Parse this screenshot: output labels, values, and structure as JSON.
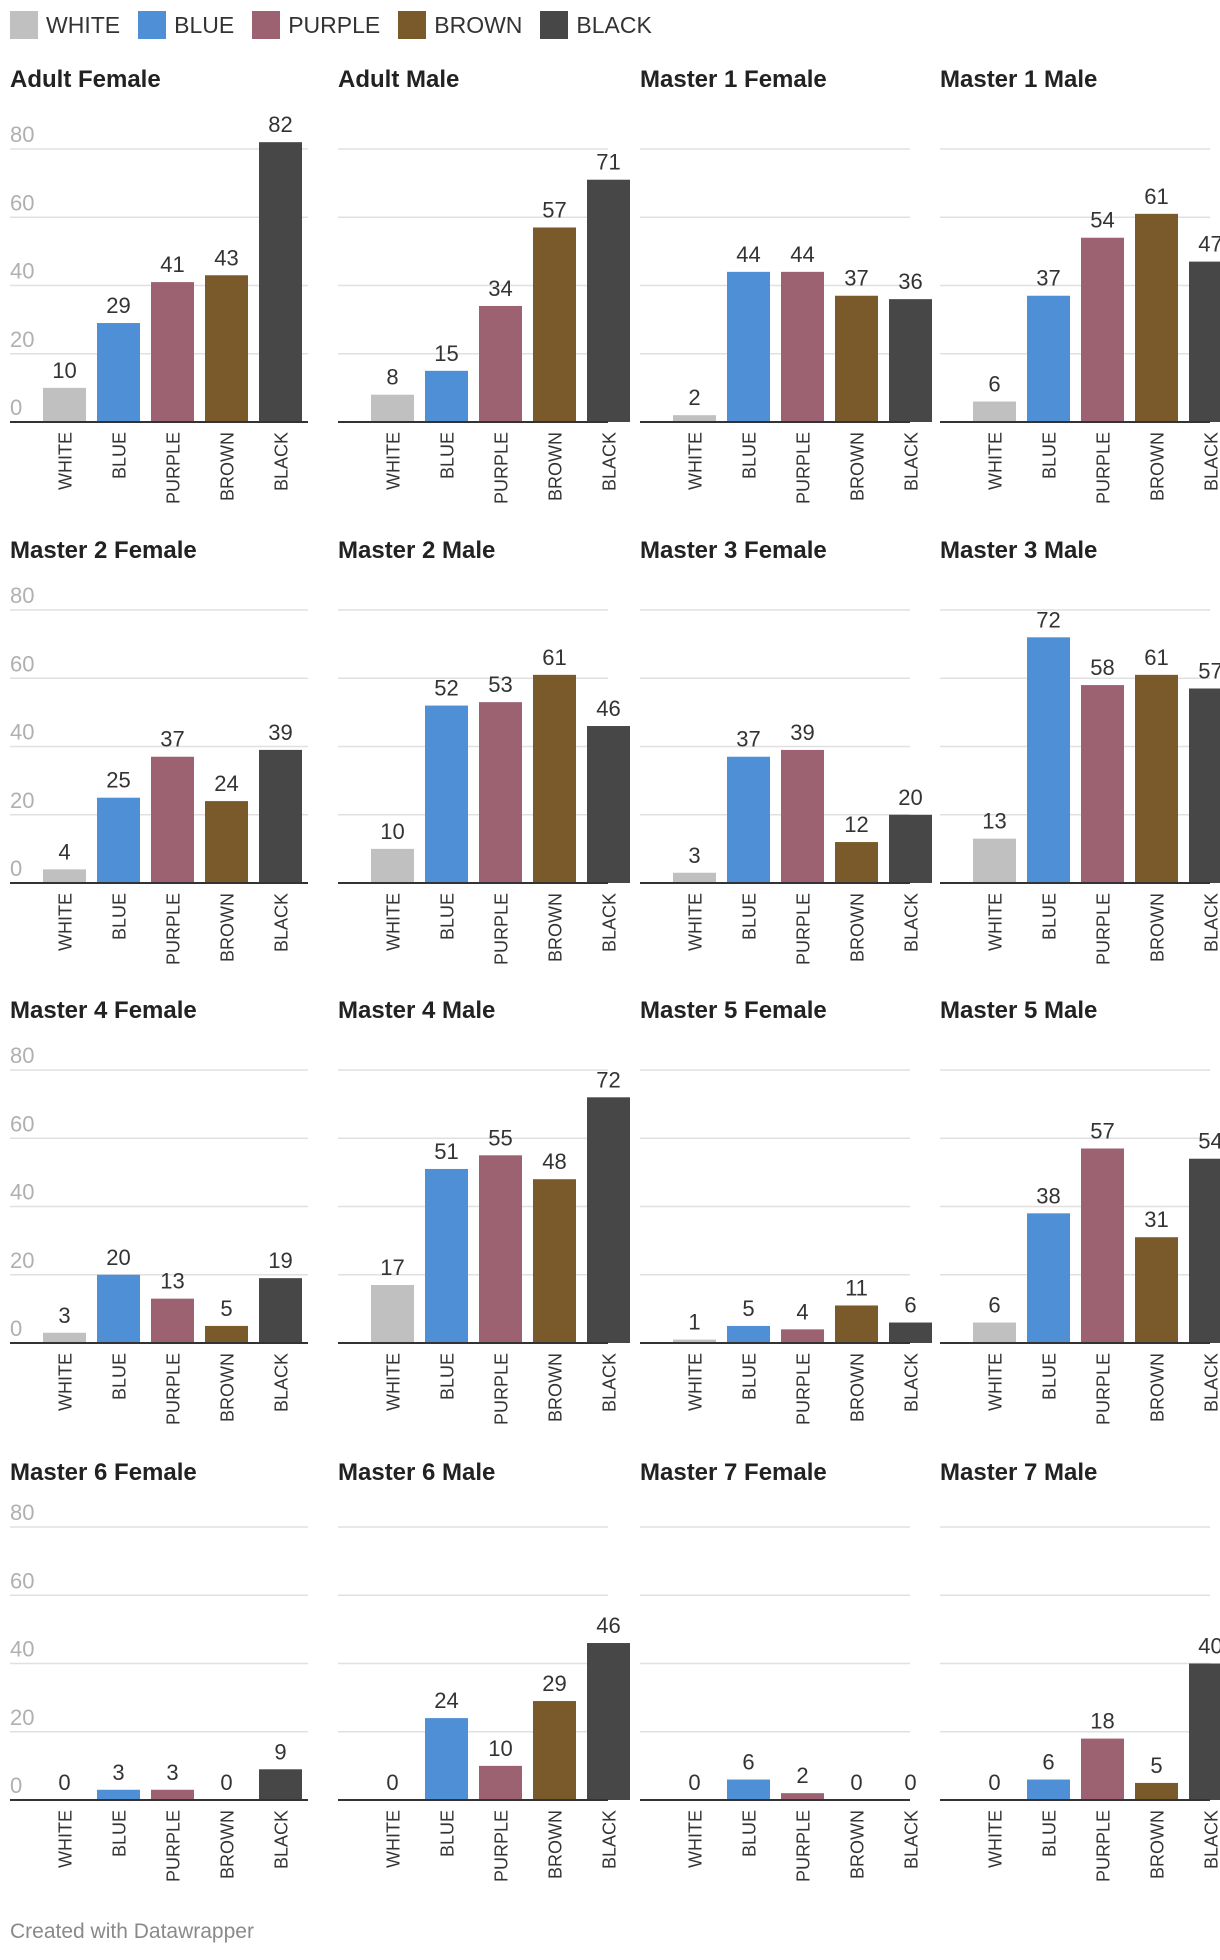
{
  "legend": [
    {
      "label": "WHITE",
      "color": "#c0c0c0"
    },
    {
      "label": "BLUE",
      "color": "#4f8fd6"
    },
    {
      "label": "PURPLE",
      "color": "#9c6272"
    },
    {
      "label": "BROWN",
      "color": "#7a5a2b"
    },
    {
      "label": "BLACK",
      "color": "#474747"
    }
  ],
  "chart_data": [
    {
      "type": "bar",
      "title": "Adult Female",
      "categories": [
        "WHITE",
        "BLUE",
        "PURPLE",
        "BROWN",
        "BLACK"
      ],
      "values": [
        10,
        29,
        41,
        43,
        82
      ],
      "yticks": [
        "0",
        "20",
        "40",
        "60",
        "80"
      ],
      "ylim": [
        0,
        80
      ]
    },
    {
      "type": "bar",
      "title": "Adult Male",
      "categories": [
        "WHITE",
        "BLUE",
        "PURPLE",
        "BROWN",
        "BLACK"
      ],
      "values": [
        8,
        15,
        34,
        57,
        71
      ],
      "ylim": [
        0,
        80
      ]
    },
    {
      "type": "bar",
      "title": "Master 1 Female",
      "categories": [
        "WHITE",
        "BLUE",
        "PURPLE",
        "BROWN",
        "BLACK"
      ],
      "values": [
        2,
        44,
        44,
        37,
        36
      ],
      "ylim": [
        0,
        80
      ]
    },
    {
      "type": "bar",
      "title": "Master 1 Male",
      "categories": [
        "WHITE",
        "BLUE",
        "PURPLE",
        "BROWN",
        "BLACK"
      ],
      "values": [
        6,
        37,
        54,
        61,
        47
      ],
      "ylim": [
        0,
        80
      ]
    },
    {
      "type": "bar",
      "title": "Master 2 Female",
      "categories": [
        "WHITE",
        "BLUE",
        "PURPLE",
        "BROWN",
        "BLACK"
      ],
      "values": [
        4,
        25,
        37,
        24,
        39
      ],
      "yticks": [
        "0",
        "20",
        "40",
        "60",
        "80"
      ],
      "ylim": [
        0,
        80
      ]
    },
    {
      "type": "bar",
      "title": "Master 2 Male",
      "categories": [
        "WHITE",
        "BLUE",
        "PURPLE",
        "BROWN",
        "BLACK"
      ],
      "values": [
        10,
        52,
        53,
        61,
        46
      ],
      "ylim": [
        0,
        80
      ]
    },
    {
      "type": "bar",
      "title": "Master 3 Female",
      "categories": [
        "WHITE",
        "BLUE",
        "PURPLE",
        "BROWN",
        "BLACK"
      ],
      "values": [
        3,
        37,
        39,
        12,
        20
      ],
      "ylim": [
        0,
        80
      ]
    },
    {
      "type": "bar",
      "title": "Master 3 Male",
      "categories": [
        "WHITE",
        "BLUE",
        "PURPLE",
        "BROWN",
        "BLACK"
      ],
      "values": [
        13,
        72,
        58,
        61,
        57
      ],
      "ylim": [
        0,
        80
      ]
    },
    {
      "type": "bar",
      "title": "Master 4 Female",
      "categories": [
        "WHITE",
        "BLUE",
        "PURPLE",
        "BROWN",
        "BLACK"
      ],
      "values": [
        3,
        20,
        13,
        5,
        19
      ],
      "yticks": [
        "0",
        "20",
        "40",
        "60",
        "80"
      ],
      "ylim": [
        0,
        80
      ]
    },
    {
      "type": "bar",
      "title": "Master 4 Male",
      "categories": [
        "WHITE",
        "BLUE",
        "PURPLE",
        "BROWN",
        "BLACK"
      ],
      "values": [
        17,
        51,
        55,
        48,
        72
      ],
      "ylim": [
        0,
        80
      ]
    },
    {
      "type": "bar",
      "title": "Master 5 Female",
      "categories": [
        "WHITE",
        "BLUE",
        "PURPLE",
        "BROWN",
        "BLACK"
      ],
      "values": [
        1,
        5,
        4,
        11,
        6
      ],
      "ylim": [
        0,
        80
      ]
    },
    {
      "type": "bar",
      "title": "Master 5 Male",
      "categories": [
        "WHITE",
        "BLUE",
        "PURPLE",
        "BROWN",
        "BLACK"
      ],
      "values": [
        6,
        38,
        57,
        31,
        54
      ],
      "ylim": [
        0,
        80
      ]
    },
    {
      "type": "bar",
      "title": "Master 6 Female",
      "categories": [
        "WHITE",
        "BLUE",
        "PURPLE",
        "BROWN",
        "BLACK"
      ],
      "values": [
        0,
        3,
        3,
        0,
        9
      ],
      "yticks": [
        "0",
        "20",
        "40",
        "60",
        "80"
      ],
      "ylim": [
        0,
        80
      ]
    },
    {
      "type": "bar",
      "title": "Master 6 Male",
      "categories": [
        "WHITE",
        "BLUE",
        "PURPLE",
        "BROWN",
        "BLACK"
      ],
      "values": [
        0,
        24,
        10,
        29,
        46
      ],
      "ylim": [
        0,
        80
      ]
    },
    {
      "type": "bar",
      "title": "Master 7 Female",
      "categories": [
        "WHITE",
        "BLUE",
        "PURPLE",
        "BROWN",
        "BLACK"
      ],
      "values": [
        0,
        6,
        2,
        0,
        0
      ],
      "ylim": [
        0,
        80
      ]
    },
    {
      "type": "bar",
      "title": "Master 7 Male",
      "categories": [
        "WHITE",
        "BLUE",
        "PURPLE",
        "BROWN",
        "BLACK"
      ],
      "values": [
        0,
        6,
        18,
        5,
        40
      ],
      "ylim": [
        0,
        80
      ]
    }
  ],
  "footer": {
    "credit": "Created with Datawrapper"
  }
}
